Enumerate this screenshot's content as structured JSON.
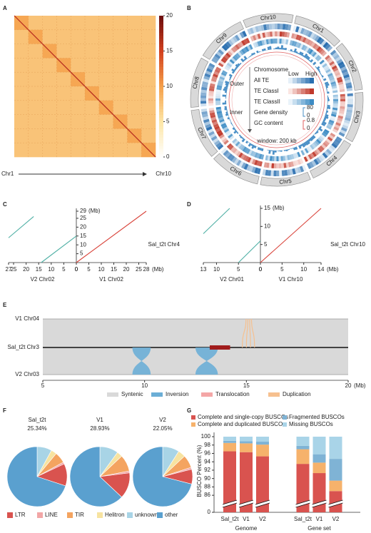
{
  "chart_data": [
    {
      "type": "heatmap",
      "label": "A",
      "values": [
        [
          9.5,
          7.5,
          7.5,
          7.5,
          7.5,
          7.5,
          7.5,
          7.5,
          7.5,
          7.5
        ],
        [
          7.5,
          9.5,
          7.5,
          7.5,
          7.5,
          7.5,
          7.5,
          7.5,
          7.5,
          7.5
        ],
        [
          7.5,
          7.5,
          9.5,
          7.5,
          7.5,
          7.5,
          7.5,
          7.5,
          7.5,
          7.5
        ],
        [
          7.5,
          7.5,
          7.5,
          9.5,
          7.5,
          7.5,
          7.5,
          7.5,
          7.5,
          7.5
        ],
        [
          7.5,
          7.5,
          7.5,
          7.5,
          9.5,
          7.5,
          7.5,
          7.5,
          7.5,
          7.5
        ],
        [
          7.5,
          7.5,
          7.5,
          7.5,
          7.5,
          9.5,
          7.5,
          7.5,
          7.5,
          7.5
        ],
        [
          7.5,
          7.5,
          7.5,
          7.5,
          7.5,
          7.5,
          9.5,
          7.5,
          7.5,
          7.5
        ],
        [
          7.5,
          7.5,
          7.5,
          7.5,
          7.5,
          7.5,
          7.5,
          9.5,
          7.5,
          7.5
        ],
        [
          7.5,
          7.5,
          7.5,
          7.5,
          7.5,
          7.5,
          7.5,
          7.5,
          9.5,
          7.5
        ],
        [
          7.5,
          7.5,
          7.5,
          7.5,
          7.5,
          7.5,
          7.5,
          7.5,
          7.5,
          9.5
        ]
      ],
      "zlim": [
        0,
        20
      ],
      "zticks": [
        0,
        5,
        10,
        15,
        20
      ],
      "x_start": "Chr1",
      "x_end": "Chr10"
    },
    {
      "type": "circos",
      "label": "B",
      "chromosomes": [
        "Chr1",
        "Chr2",
        "Chr3",
        "Chr4",
        "Chr5",
        "Chr6",
        "Chr7",
        "Chr8",
        "Chr9",
        "Chr10"
      ],
      "outer": "Outer",
      "inner": "Inner",
      "tracks": [
        "Chromosome",
        "All TE",
        "TE ClassI",
        "TE ClassII",
        "Gene density",
        "GC content"
      ],
      "low": "Low",
      "high": "High",
      "gene_density_scale": [
        0,
        80
      ],
      "gc_scale": [
        0,
        0.8
      ],
      "window": "window: 200 kb"
    },
    {
      "type": "dotplot",
      "label": "C",
      "ylabel": "Sal_t2t Chr4",
      "unit": "(Mb)",
      "left_name": "V2 Chr02",
      "right_name": "V1 Chr02",
      "ylim": [
        0,
        29
      ],
      "yticks": [
        5,
        10,
        15,
        20,
        25,
        29
      ],
      "left_xlim": [
        0,
        27
      ],
      "left_xticks": [
        27,
        25,
        20,
        15,
        10,
        5,
        0
      ],
      "right_xlim": [
        0,
        28
      ],
      "right_xticks": [
        0,
        5,
        10,
        15,
        20,
        25,
        28
      ],
      "segments": [
        {
          "side": "right",
          "color": "#d9433a",
          "x": [
            0,
            28
          ],
          "y": [
            0,
            29
          ]
        },
        {
          "side": "left",
          "color": "#4fb0a5",
          "x": [
            14,
            0
          ],
          "y": [
            0,
            15
          ]
        },
        {
          "side": "left",
          "color": "#4fb0a5",
          "x": [
            27,
            17
          ],
          "y": [
            14,
            26
          ]
        }
      ]
    },
    {
      "type": "dotplot",
      "label": "D",
      "ylabel": "Sal_t2t Chr10",
      "unit": "(Mb)",
      "left_name": "V2 Chr01",
      "right_name": "V1 Chr10",
      "ylim": [
        0,
        15
      ],
      "yticks": [
        5,
        10,
        15
      ],
      "left_xlim": [
        0,
        13
      ],
      "left_xticks": [
        13,
        10,
        5,
        0
      ],
      "right_xlim": [
        0,
        14
      ],
      "right_xticks": [
        0,
        5,
        10,
        14
      ],
      "segments": [
        {
          "side": "right",
          "color": "#d9433a",
          "x": [
            0,
            14
          ],
          "y": [
            0,
            15
          ]
        },
        {
          "side": "left",
          "color": "#4fb0a5",
          "x": [
            5,
            0
          ],
          "y": [
            0,
            6
          ]
        },
        {
          "side": "left",
          "color": "#4fb0a5",
          "x": [
            13,
            7
          ],
          "y": [
            8,
            15
          ]
        }
      ]
    },
    {
      "type": "synteny",
      "label": "E",
      "tracks": [
        "V1 Chr04",
        "Sal_t2t Chr3",
        "V2 Chr03"
      ],
      "xlim": [
        5,
        20
      ],
      "xticks": [
        5,
        10,
        15,
        20
      ],
      "unit": "(Mb)",
      "legend": [
        {
          "name": "Syntenic",
          "color": "#d9d9d9"
        },
        {
          "name": "Inversion",
          "color": "#6baed6"
        },
        {
          "name": "Translocation",
          "color": "#f4a6a6"
        },
        {
          "name": "Duplication",
          "color": "#f6c08f"
        }
      ],
      "events": [
        {
          "kind": "Inversion",
          "start": 9.4,
          "end": 10.3
        },
        {
          "kind": "Inversion",
          "start": 12.5,
          "end": 13.6
        },
        {
          "kind": "Translocation",
          "start": 13.2,
          "end": 14.2,
          "color": "#a01c1c"
        },
        {
          "kind": "Duplication",
          "start": 14.8,
          "end": 15.4
        }
      ]
    },
    {
      "type": "pie",
      "label": "F",
      "categories": [
        "LTR",
        "LINE",
        "TIR",
        "Helitron",
        "unknown",
        "other"
      ],
      "colors": [
        "#d9534f",
        "#f2a6a6",
        "#f4a460",
        "#f7e3a0",
        "#a8d4e6",
        "#5aa0cf"
      ],
      "pies": [
        {
          "title": "Sal_t2t",
          "subtitle": "25.34%",
          "values": [
            12,
            1,
            6,
            3,
            8,
            70
          ]
        },
        {
          "title": "V1",
          "subtitle": "28.93%",
          "values": [
            14,
            1,
            9,
            3,
            10,
            63
          ]
        },
        {
          "title": "V2",
          "subtitle": "22.05%",
          "values": [
            8,
            1,
            7,
            4,
            9,
            71
          ]
        }
      ]
    },
    {
      "type": "stacked_bar",
      "label": "G",
      "ylabel": "BUSCO Percent (%)",
      "categories": [
        "Sal_t2t",
        "V1",
        "V2",
        "Sal_t2t",
        "V1",
        "V2"
      ],
      "groups": [
        "Genome",
        "Gene set"
      ],
      "ylim": [
        0,
        100
      ],
      "axis_break": [
        0,
        85
      ],
      "yticks": [
        0,
        86,
        88,
        90,
        92,
        94,
        96,
        98,
        100
      ],
      "series": [
        {
          "name": "Complete and single-copy BUSCOs",
          "color": "#d9534f",
          "values": [
            96.5,
            96.3,
            95.3,
            93.5,
            91.3,
            87.0
          ]
        },
        {
          "name": "Complete and duplicated BUSCOs",
          "color": "#f6b26b",
          "values": [
            2.0,
            2.1,
            2.8,
            3.5,
            2.5,
            2.5
          ]
        },
        {
          "name": "Fragmented BUSCOs",
          "color": "#7fb3d5",
          "values": [
            0.5,
            0.5,
            0.7,
            0.8,
            2.0,
            5.2
          ]
        },
        {
          "name": "Missing BUSCOs",
          "color": "#a9d4e8",
          "values": [
            1.0,
            1.1,
            1.2,
            2.2,
            4.2,
            5.3
          ]
        }
      ]
    }
  ]
}
